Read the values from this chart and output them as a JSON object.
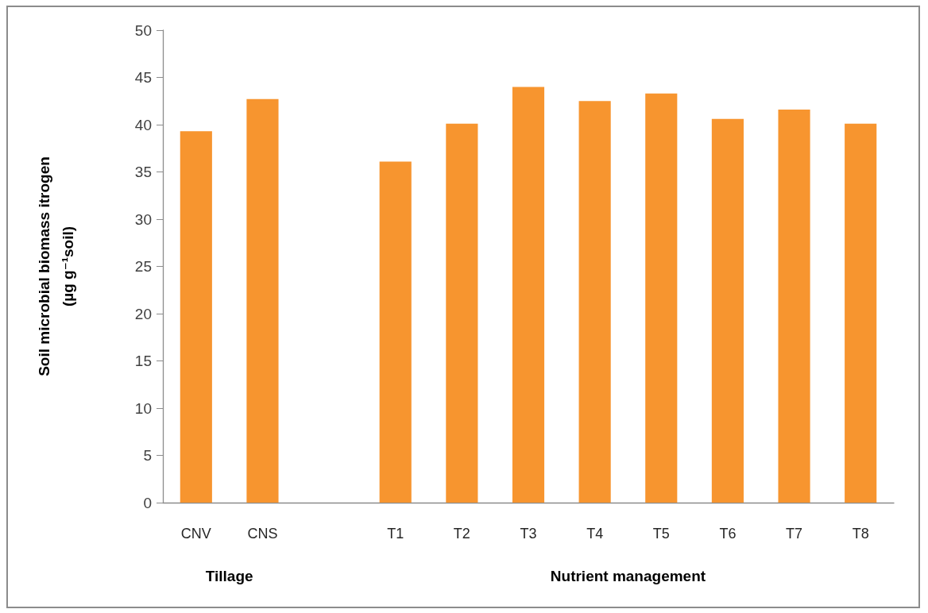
{
  "chart_data": {
    "type": "bar",
    "categories": [
      "CNV",
      "CNS",
      null,
      "T1",
      "T2",
      "T3",
      "T4",
      "T5",
      "T6",
      "T7",
      "T8"
    ],
    "values": [
      39.3,
      42.7,
      null,
      36.1,
      40.1,
      44.0,
      42.5,
      43.3,
      40.6,
      41.6,
      40.1
    ],
    "color": "#f7952f",
    "ylabel": "Soil microbial biomass itrogen\n(µg g⁻¹soil)",
    "ylim": [
      0,
      50
    ],
    "yticks": [
      0,
      5,
      10,
      15,
      20,
      25,
      30,
      35,
      40,
      45,
      50
    ],
    "annotations": [
      "Tillage",
      "Nutrient management"
    ]
  }
}
